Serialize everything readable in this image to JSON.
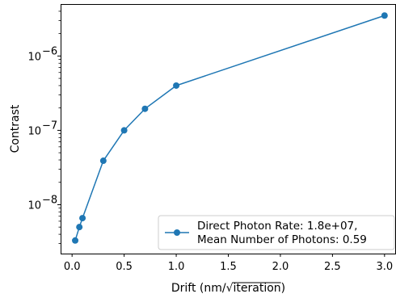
{
  "chart_data": {
    "type": "line",
    "x": [
      0.03,
      0.07,
      0.1,
      0.3,
      0.5,
      0.7,
      1.0,
      3.0
    ],
    "series": [
      {
        "name": "Direct Photon Rate: 1.8e+07,\nMean Number of Photons: 0.59",
        "legend_lines": [
          "Direct Photon Rate: 1.8e+07,",
          "Mean Number of Photons: 0.59"
        ],
        "values": [
          3.3e-09,
          5e-09,
          6.6e-09,
          3.9e-08,
          1e-07,
          1.95e-07,
          4e-07,
          3.5e-06
        ],
        "color": "#1f77b4"
      }
    ],
    "xlabel": "Drift (nm/√iteration)",
    "xlabel_prefix": "Drift (nm/",
    "xlabel_radical": "√",
    "xlabel_radicand": "iteration",
    "xlabel_suffix": ")",
    "ylabel": "Contrast",
    "xlim": [
      -0.11,
      3.11
    ],
    "ylim": [
      2.2e-09,
      5e-06
    ],
    "yscale": "log",
    "xticks": [
      0.0,
      0.5,
      1.0,
      1.5,
      2.0,
      2.5,
      3.0
    ],
    "xtick_labels": [
      "0.0",
      "0.5",
      "1.0",
      "1.5",
      "2.0",
      "2.5",
      "3.0"
    ],
    "yticks": [
      {
        "value": 1e-08,
        "base": "10",
        "exp": "−8"
      },
      {
        "value": 1e-07,
        "base": "10",
        "exp": "−7"
      },
      {
        "value": 1e-06,
        "base": "10",
        "exp": "−6"
      }
    ],
    "grid": false,
    "legend_position": "lower-right"
  }
}
